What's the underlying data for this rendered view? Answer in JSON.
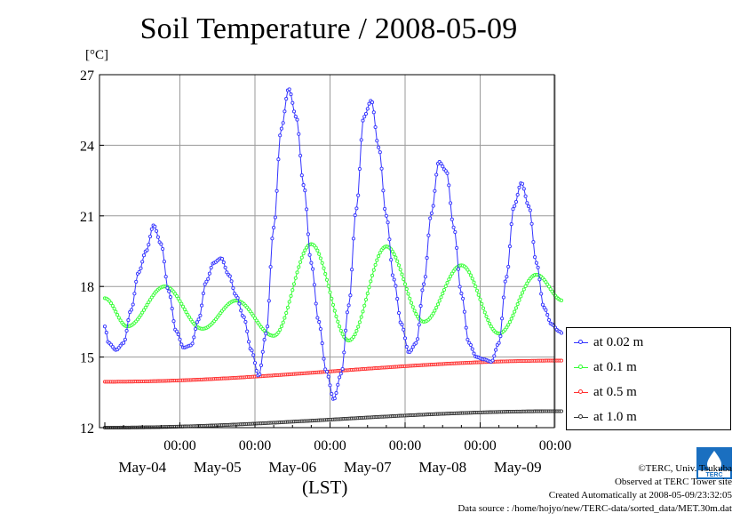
{
  "title": "Soil Temperature / 2008-05-09",
  "y_unit": "[°C]",
  "x_unit_label": "(LST)",
  "credits": {
    "copyright": "©TERC, Univ. Tsukuba",
    "observed": "Observed at TERC Tower site",
    "created": "Created Automatically at 2008-05-09/23:32:05",
    "source": "Data source : /home/hojyo/new/TERC-data/sorted_data/MET.30m.dat"
  },
  "logo_text": "TERC",
  "legend_placement": "right-bottom, outside plot",
  "chart_data": {
    "type": "line",
    "title": "Soil Temperature / 2008-05-09",
    "ylabel": "[°C]",
    "xlabel": "(LST)",
    "ylim": [
      12,
      27
    ],
    "yticks": [
      "12",
      "15",
      "18",
      "21",
      "24",
      "27"
    ],
    "xlim_days": [
      0,
      6.1
    ],
    "xticks": [
      {
        "time": "00:00",
        "date": "May-04"
      },
      {
        "time": "00:00",
        "date": "May-05"
      },
      {
        "time": "00:00",
        "date": "May-06"
      },
      {
        "time": "00:00",
        "date": "May-07"
      },
      {
        "time": "00:00",
        "date": "May-08"
      },
      {
        "time": "00:00",
        "date": "May-09"
      }
    ],
    "grid": true,
    "series": [
      {
        "name": "at 1.0 m",
        "color": "#333333",
        "x": [
          0,
          6.1
        ],
        "y": [
          12.0,
          12.7
        ]
      },
      {
        "name": "at 0.5 m",
        "color": "#ff3030",
        "x": [
          0,
          6.1
        ],
        "y": [
          13.95,
          14.85
        ]
      },
      {
        "name": "at 0.1 m",
        "color": "#33ff33",
        "x": [
          0,
          0.3,
          0.8,
          1.3,
          1.75,
          2.25,
          2.75,
          3.25,
          3.75,
          4.25,
          4.75,
          5.25,
          5.75,
          6.1
        ],
        "y": [
          17.5,
          16.3,
          18.0,
          16.2,
          17.4,
          15.9,
          19.8,
          15.7,
          19.7,
          16.5,
          18.9,
          16.0,
          18.5,
          17.4
        ]
      },
      {
        "name": "at 0.02 m",
        "color": "#3333ff",
        "x": [
          0,
          0.05,
          0.15,
          0.25,
          0.35,
          0.45,
          0.55,
          0.65,
          0.75,
          0.85,
          0.95,
          1.05,
          1.15,
          1.25,
          1.35,
          1.45,
          1.55,
          1.65,
          1.75,
          1.85,
          1.95,
          2.05,
          2.15,
          2.25,
          2.35,
          2.45,
          2.55,
          2.65,
          2.75,
          2.85,
          2.95,
          3.05,
          3.15,
          3.25,
          3.35,
          3.45,
          3.55,
          3.65,
          3.75,
          3.85,
          3.95,
          4.05,
          4.15,
          4.25,
          4.35,
          4.45,
          4.55,
          4.65,
          4.75,
          4.85,
          4.95,
          5.05,
          5.15,
          5.25,
          5.35,
          5.45,
          5.55,
          5.65,
          5.75,
          5.85,
          5.95,
          6.05,
          6.1
        ],
        "y": [
          16.3,
          15.6,
          15.3,
          15.6,
          17.0,
          18.6,
          19.5,
          20.6,
          19.8,
          17.8,
          16.1,
          15.4,
          15.5,
          16.6,
          18.2,
          19.0,
          19.2,
          18.5,
          17.6,
          16.7,
          15.3,
          14.2,
          16.0,
          20.5,
          24.7,
          26.4,
          25.2,
          22.3,
          19.0,
          16.5,
          14.4,
          13.2,
          14.3,
          17.2,
          21.3,
          25.2,
          25.9,
          23.9,
          21.0,
          18.3,
          16.4,
          15.2,
          15.6,
          18.1,
          21.1,
          23.3,
          22.9,
          20.5,
          17.7,
          15.6,
          15.0,
          14.9,
          14.8,
          15.6,
          18.4,
          21.4,
          22.4,
          21.4,
          19.0,
          17.1,
          16.4,
          16.1,
          16.0
        ]
      }
    ]
  }
}
